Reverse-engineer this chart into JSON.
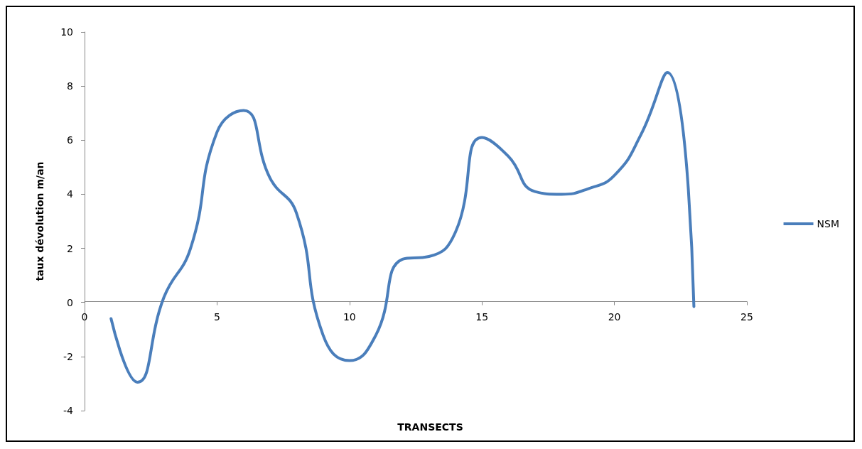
{
  "chart_data": {
    "type": "line",
    "xlabel": "TRANSECTS",
    "ylabel": "taux dévolution m/an",
    "x": [
      1,
      2,
      3,
      4,
      5,
      6,
      7,
      8,
      9,
      10,
      11,
      12,
      13,
      14,
      15,
      16,
      17,
      18,
      19,
      20,
      21,
      22,
      23
    ],
    "series": [
      {
        "name": "NSM",
        "color": "#4a7ebb",
        "values": [
          -0.6,
          -2.95,
          0.2,
          2,
          6.3,
          7.1,
          4.6,
          3.3,
          -1.2,
          -2.15,
          -1.2,
          1.6,
          1.7,
          2.6,
          6.1,
          5.4,
          4.1,
          4.0,
          4.2,
          4.7,
          6.2,
          8.5,
          -0.15
        ]
      }
    ],
    "xlim": [
      0,
      25
    ],
    "xticks": [
      0,
      5,
      10,
      15,
      20,
      25
    ],
    "ylim": [
      -4,
      10
    ],
    "yticks": [
      -4,
      -2,
      0,
      2,
      4,
      6,
      8,
      10
    ],
    "grid": false,
    "legend": "right",
    "marker": "none",
    "line_style": "solid"
  }
}
